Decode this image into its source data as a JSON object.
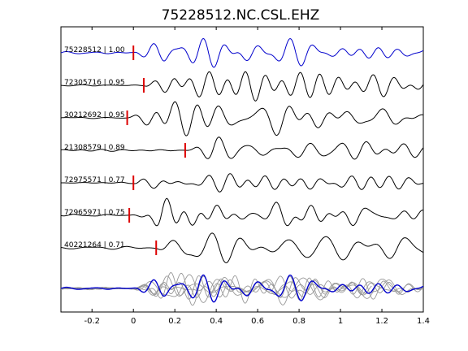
{
  "chart_data": {
    "type": "line",
    "title": "75228512.NC.CSL.EHZ",
    "xlabel": "",
    "ylabel": "",
    "xlim": [
      -0.35,
      1.4
    ],
    "xticks": [
      -0.2,
      0,
      0.2,
      0.4,
      0.6,
      0.8,
      1,
      1.2,
      1.4
    ],
    "grid": false,
    "colors": {
      "reference": "#0000cc",
      "trace": "#000000",
      "pick": "#dd0000",
      "overlay": "#999999"
    },
    "traces": [
      {
        "label": "75228512 | 1.00",
        "pick": 0.0,
        "reference": true
      },
      {
        "label": "72305716 | 0.95",
        "pick": 0.05
      },
      {
        "label": "30212692 | 0.95",
        "pick": -0.03
      },
      {
        "label": "21308579 | 0.89",
        "pick": 0.25
      },
      {
        "label": "72975571 | 0.77",
        "pick": 0.0
      },
      {
        "label": "72965971 | 0.75",
        "pick": -0.02
      },
      {
        "label": "40221264 | 0.71",
        "pick": 0.11
      }
    ]
  }
}
